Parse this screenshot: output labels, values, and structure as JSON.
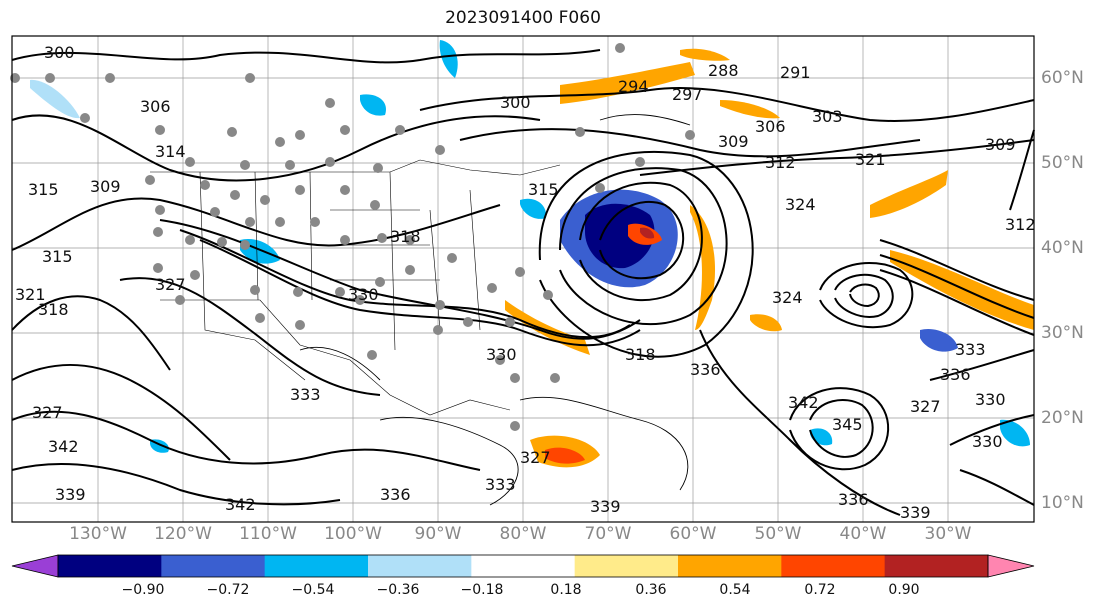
{
  "title": "2023091400 F060",
  "lat_labels": [
    "60°N",
    "50°N",
    "40°N",
    "30°N",
    "20°N",
    "10°N"
  ],
  "lon_labels": [
    "130°W",
    "120°W",
    "110°W",
    "100°W",
    "90°W",
    "80°W",
    "70°W",
    "60°W",
    "50°W",
    "40°W",
    "30°W"
  ],
  "contour_labels": [
    "300",
    "306",
    "314",
    "309",
    "315",
    "315",
    "318",
    "321",
    "327",
    "330",
    "318",
    "330",
    "333",
    "336",
    "336",
    "339",
    "342",
    "327",
    "330",
    "333",
    "336",
    "339",
    "342",
    "327",
    "300",
    "309",
    "312",
    "321",
    "324",
    "324",
    "327",
    "330",
    "288",
    "291",
    "294",
    "297",
    "303",
    "306",
    "309",
    "312",
    "315",
    "318",
    "333",
    "336",
    "339",
    "342",
    "345"
  ],
  "colorbar": {
    "ticks": [
      "−0.90",
      "−0.72",
      "−0.54",
      "−0.36",
      "−0.18",
      "0.18",
      "0.36",
      "0.54",
      "0.72",
      "0.90"
    ],
    "colors": [
      "#9a3fd6",
      "#000080",
      "#3a5fd0",
      "#00b6f2",
      "#b0e0f8",
      "#ffffff",
      "#ffeb8a",
      "#ffa500",
      "#ff4500",
      "#b22222",
      "#ff85b0"
    ]
  }
}
